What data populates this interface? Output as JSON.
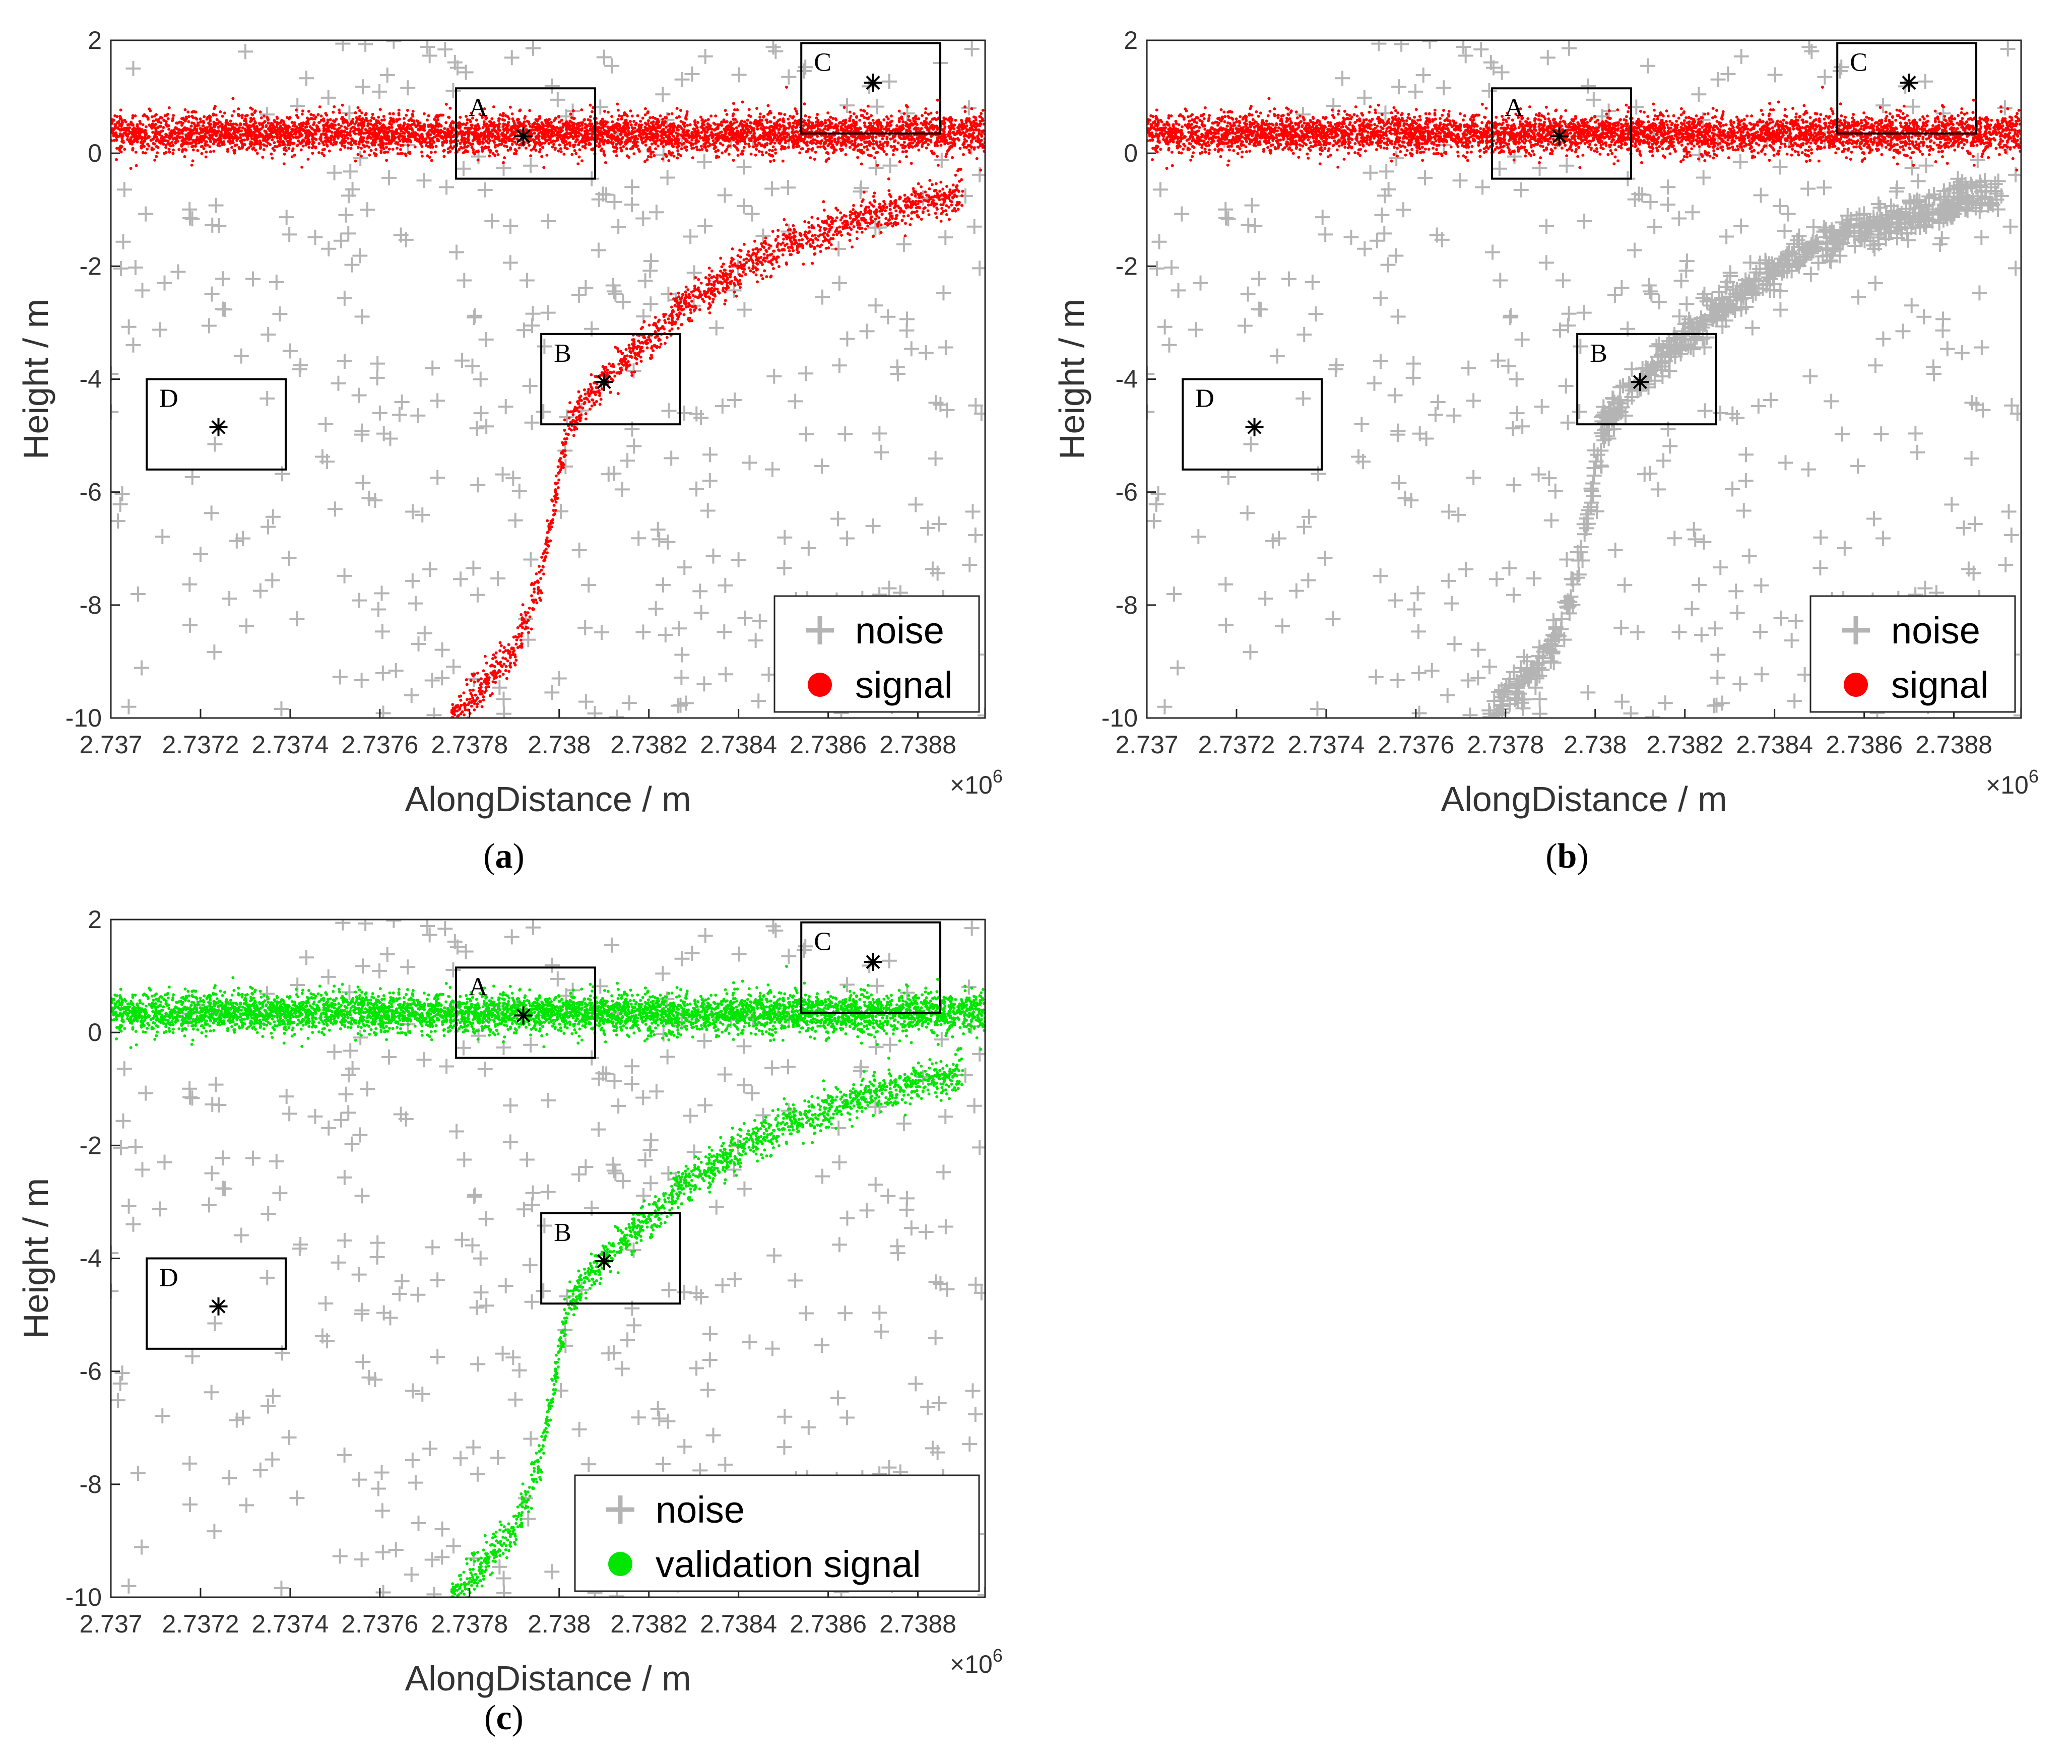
{
  "chart_data": [
    {
      "type": "scatter",
      "xlabel": "AlongDistance / m",
      "ylabel": "Height / m",
      "x_exponent": "×10^6",
      "xlim": [
        2737000,
        2738950
      ],
      "ylim": [
        -10,
        2
      ],
      "x_ticks": [
        "2.737",
        "2.7372",
        "2.7374",
        "2.7376",
        "2.7378",
        "2.738",
        "2.7382",
        "2.7384",
        "2.7386",
        "2.7388"
      ],
      "y_ticks": [
        "2",
        "0",
        "-2",
        "-4",
        "-6",
        "-8",
        "-10"
      ],
      "legend_placement": "bottom-right",
      "series": [
        {
          "name": "noise",
          "marker": "plus",
          "color": "#b4b4b4",
          "points": [
            [
              2737050,
              1.5
            ],
            [
              2737150,
              -2.1
            ],
            [
              2737300,
              1.8
            ],
            [
              2737400,
              -3.5
            ],
            [
              2737500,
              -6.3
            ],
            [
              2737700,
              -8.5
            ],
            [
              2737850,
              -1.2
            ],
            [
              2738100,
              1.7
            ],
            [
              2738250,
              -5.4
            ],
            [
              2738400,
              -7.2
            ],
            [
              2738550,
              -3.9
            ],
            [
              2738700,
              -6.6
            ],
            [
              2738850,
              1.6
            ],
            [
              2737200,
              -7.1
            ],
            [
              2737600,
              -4.6
            ],
            [
              2738000,
              -9.3
            ],
            [
              2738300,
              -2.7
            ],
            [
              2738650,
              -8.8
            ]
          ]
        },
        {
          "name": "signal",
          "marker": "dot",
          "color": "#ff0000",
          "surface_height": 0.35,
          "surface_spread": 0.35,
          "slope_profile": [
            [
              2737760,
              -10
            ],
            [
              2737900,
              -8.8
            ],
            [
              2737960,
              -7.5
            ],
            [
              2738020,
              -4.8
            ],
            [
              2738100,
              -4.0
            ],
            [
              2738200,
              -3.3
            ],
            [
              2738300,
              -2.6
            ],
            [
              2738450,
              -1.8
            ],
            [
              2738650,
              -1.2
            ],
            [
              2738900,
              -0.7
            ]
          ]
        }
      ],
      "annotations": [
        {
          "label": "A",
          "box": {
            "x0": 2737770,
            "x1": 2738080,
            "y0": -0.45,
            "y1": 1.15
          },
          "star": [
            2737920,
            0.3
          ]
        },
        {
          "label": "B",
          "box": {
            "x0": 2737960,
            "x1": 2738270,
            "y0": -4.8,
            "y1": -3.2
          },
          "star": [
            2738100,
            -4.05
          ]
        },
        {
          "label": "C",
          "box": {
            "x0": 2738540,
            "x1": 2738850,
            "y0": 0.35,
            "y1": 1.95
          },
          "star": [
            2738700,
            1.25
          ]
        },
        {
          "label": "D",
          "box": {
            "x0": 2737080,
            "x1": 2737390,
            "y0": -5.6,
            "y1": -4.0
          },
          "star": [
            2737240,
            -4.85
          ]
        }
      ]
    },
    {
      "type": "scatter",
      "xlabel": "AlongDistance / m",
      "ylabel": "Height / m",
      "x_exponent": "×10^6",
      "xlim": [
        2737000,
        2738950
      ],
      "ylim": [
        -10,
        2
      ],
      "x_ticks": [
        "2.737",
        "2.7372",
        "2.7374",
        "2.7376",
        "2.7378",
        "2.738",
        "2.7382",
        "2.7384",
        "2.7386",
        "2.7388"
      ],
      "y_ticks": [
        "2",
        "0",
        "-2",
        "-4",
        "-6",
        "-8",
        "-10"
      ],
      "legend_placement": "bottom-right",
      "series": [
        {
          "name": "noise",
          "marker": "plus",
          "color": "#b4b4b4",
          "slope_as_noise": true,
          "slope_profile": [
            [
              2737760,
              -10
            ],
            [
              2737900,
              -8.8
            ],
            [
              2737960,
              -7.5
            ],
            [
              2738020,
              -4.8
            ],
            [
              2738100,
              -4.0
            ],
            [
              2738200,
              -3.3
            ],
            [
              2738300,
              -2.6
            ],
            [
              2738450,
              -1.8
            ],
            [
              2738650,
              -1.2
            ],
            [
              2738900,
              -0.7
            ]
          ]
        },
        {
          "name": "signal",
          "marker": "dot",
          "color": "#ff0000",
          "surface_height": 0.35,
          "surface_spread": 0.35
        }
      ],
      "annotations": [
        {
          "label": "A",
          "box": {
            "x0": 2737770,
            "x1": 2738080,
            "y0": -0.45,
            "y1": 1.15
          },
          "star": [
            2737920,
            0.3
          ]
        },
        {
          "label": "B",
          "box": {
            "x0": 2737960,
            "x1": 2738270,
            "y0": -4.8,
            "y1": -3.2
          },
          "star": [
            2738100,
            -4.05
          ]
        },
        {
          "label": "C",
          "box": {
            "x0": 2738540,
            "x1": 2738850,
            "y0": 0.35,
            "y1": 1.95
          },
          "star": [
            2738700,
            1.25
          ]
        },
        {
          "label": "D",
          "box": {
            "x0": 2737080,
            "x1": 2737390,
            "y0": -5.6,
            "y1": -4.0
          },
          "star": [
            2737240,
            -4.85
          ]
        }
      ]
    },
    {
      "type": "scatter",
      "xlabel": "AlongDistance / m",
      "ylabel": "Height / m",
      "x_exponent": "×10^6",
      "xlim": [
        2737000,
        2738950
      ],
      "ylim": [
        -10,
        2
      ],
      "x_ticks": [
        "2.737",
        "2.7372",
        "2.7374",
        "2.7376",
        "2.7378",
        "2.738",
        "2.7382",
        "2.7384",
        "2.7386",
        "2.7388"
      ],
      "y_ticks": [
        "2",
        "0",
        "-2",
        "-4",
        "-6",
        "-8",
        "-10"
      ],
      "legend_placement": "bottom-right",
      "series": [
        {
          "name": "noise",
          "marker": "plus",
          "color": "#b4b4b4"
        },
        {
          "name": "validation signal",
          "marker": "dot",
          "color": "#00e600",
          "surface_height": 0.35,
          "surface_spread": 0.35,
          "slope_profile": [
            [
              2737760,
              -10
            ],
            [
              2737900,
              -8.8
            ],
            [
              2737960,
              -7.5
            ],
            [
              2738020,
              -4.8
            ],
            [
              2738100,
              -4.0
            ],
            [
              2738200,
              -3.3
            ],
            [
              2738300,
              -2.6
            ],
            [
              2738450,
              -1.8
            ],
            [
              2738650,
              -1.2
            ],
            [
              2738900,
              -0.7
            ]
          ]
        }
      ],
      "annotations": [
        {
          "label": "A",
          "box": {
            "x0": 2737770,
            "x1": 2738080,
            "y0": -0.45,
            "y1": 1.15
          },
          "star": [
            2737920,
            0.3
          ]
        },
        {
          "label": "B",
          "box": {
            "x0": 2737960,
            "x1": 2738270,
            "y0": -4.8,
            "y1": -3.2
          },
          "star": [
            2738100,
            -4.05
          ]
        },
        {
          "label": "C",
          "box": {
            "x0": 2738540,
            "x1": 2738850,
            "y0": 0.35,
            "y1": 1.95
          },
          "star": [
            2738700,
            1.25
          ]
        },
        {
          "label": "D",
          "box": {
            "x0": 2737080,
            "x1": 2737390,
            "y0": -5.6,
            "y1": -4.0
          },
          "star": [
            2737240,
            -4.85
          ]
        }
      ]
    }
  ],
  "captions": [
    {
      "letter": "a",
      "text": "(a)"
    },
    {
      "letter": "b",
      "text": "(b)"
    },
    {
      "letter": "c",
      "text": "(c)"
    }
  ]
}
